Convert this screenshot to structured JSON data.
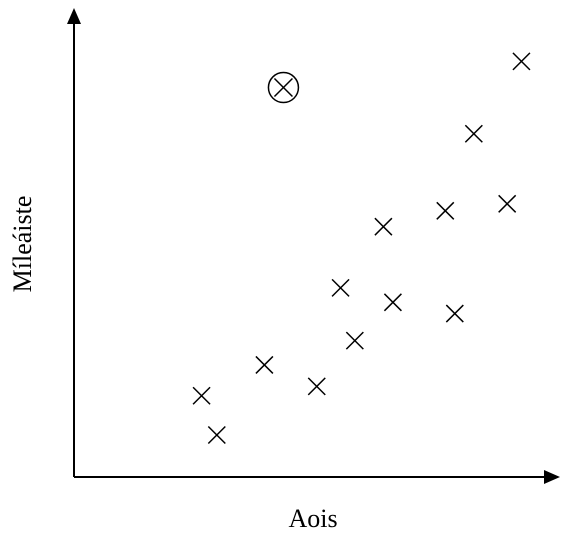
{
  "chart_data": {
    "type": "scatter",
    "xlabel": "Aois",
    "ylabel": "Míleáiste",
    "xlim": [
      0,
      10
    ],
    "ylim": [
      0,
      10
    ],
    "points": [
      {
        "x": 2.68,
        "y": 1.74,
        "marker": "x"
      },
      {
        "x": 3.0,
        "y": 0.9,
        "marker": "x"
      },
      {
        "x": 4.0,
        "y": 2.4,
        "marker": "x"
      },
      {
        "x": 5.1,
        "y": 1.94,
        "marker": "x"
      },
      {
        "x": 5.6,
        "y": 4.05,
        "marker": "x"
      },
      {
        "x": 5.9,
        "y": 2.92,
        "marker": "x"
      },
      {
        "x": 6.5,
        "y": 5.36,
        "marker": "x"
      },
      {
        "x": 6.7,
        "y": 3.74,
        "marker": "x"
      },
      {
        "x": 7.8,
        "y": 5.7,
        "marker": "x"
      },
      {
        "x": 8.0,
        "y": 3.5,
        "marker": "x"
      },
      {
        "x": 8.4,
        "y": 7.35,
        "marker": "x"
      },
      {
        "x": 9.1,
        "y": 5.85,
        "marker": "x"
      },
      {
        "x": 9.4,
        "y": 8.9,
        "marker": "x"
      },
      {
        "x": 4.4,
        "y": 8.34,
        "marker": "circled-x"
      }
    ],
    "grid": false,
    "legend": false
  }
}
